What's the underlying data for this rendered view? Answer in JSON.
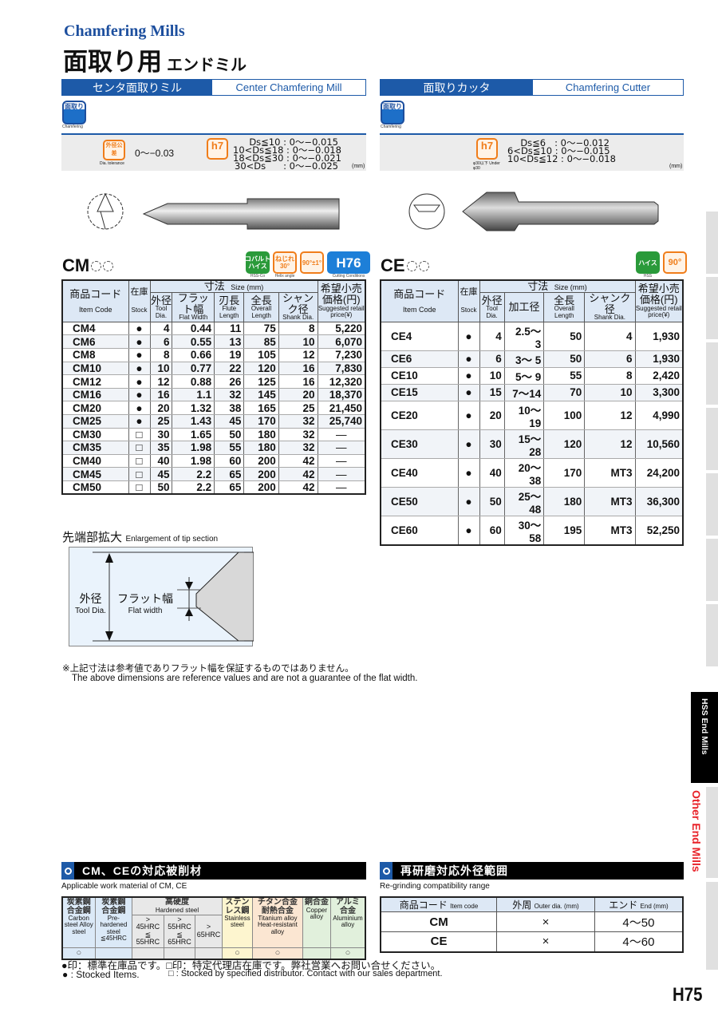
{
  "header": {
    "title_en": "Chamfering Mills",
    "title_jp": "面取り用",
    "title_jp_sub": "エンドミル"
  },
  "left": {
    "section_jp": "センタ面取りミル",
    "section_en": "Center Chamfering Mill",
    "icon_label": "面取り",
    "icon_caption": "Chamfering",
    "dia_tol_badge": "外径公差",
    "dia_tol_caption": "Dia. tolerance",
    "dia_tol_value": "0〜−0.03",
    "h7_badge": "h7",
    "h7_lines": "Ds≦10 : 0〜−0.015\n10<Ds≦18 : 0〜−0.018\n18<Ds≦30 : 0〜−0.021\n30<Ds      : 0〜−0.025",
    "unit": "(mm)",
    "series": "CM",
    "spec_icons": [
      {
        "label": "コバルト\nハイス",
        "caption": "HSS-Co",
        "color": "#2a9a3a"
      },
      {
        "label": "ねじれ30°",
        "caption": "Helix angle",
        "color": "#f07d1a"
      },
      {
        "label": "90°±1°",
        "caption": "",
        "color": "#f07d1a"
      },
      {
        "label": "H76",
        "caption": "Cutting Conditions",
        "color": "#1d7fd8"
      }
    ],
    "table": {
      "h_code_jp": "商品コード",
      "h_code_en": "Item Code",
      "h_stock_jp": "在庫",
      "h_stock_en": "Stock",
      "h_size_jp": "寸法",
      "h_size_en": "Size (mm)",
      "cols": [
        {
          "jp": "外径",
          "en": "Tool Dia."
        },
        {
          "jp": "フラット幅",
          "en": "Flat Width"
        },
        {
          "jp": "刃長",
          "en": "Flute Length"
        },
        {
          "jp": "全長",
          "en": "Overall Length"
        },
        {
          "jp": "シャンク径",
          "en": "Shank Dia."
        }
      ],
      "h_price_jp": "希望小売価格(円)",
      "h_price_en": "Suggested retail price(¥)",
      "rows": [
        [
          "CM4",
          "●",
          "4",
          "0.44",
          "11",
          "75",
          "8",
          "5,220"
        ],
        [
          "CM6",
          "●",
          "6",
          "0.55",
          "13",
          "85",
          "10",
          "6,070"
        ],
        [
          "CM8",
          "●",
          "8",
          "0.66",
          "19",
          "105",
          "12",
          "7,230"
        ],
        [
          "CM10",
          "●",
          "10",
          "0.77",
          "22",
          "120",
          "16",
          "7,830"
        ],
        [
          "CM12",
          "●",
          "12",
          "0.88",
          "26",
          "125",
          "16",
          "12,320"
        ],
        [
          "CM16",
          "●",
          "16",
          "1.1",
          "32",
          "145",
          "20",
          "18,370"
        ],
        [
          "CM20",
          "●",
          "20",
          "1.32",
          "38",
          "165",
          "25",
          "21,450"
        ],
        [
          "CM25",
          "●",
          "25",
          "1.43",
          "45",
          "170",
          "32",
          "25,740"
        ],
        [
          "CM30",
          "□",
          "30",
          "1.65",
          "50",
          "180",
          "32",
          "—"
        ],
        [
          "CM35",
          "□",
          "35",
          "1.98",
          "55",
          "180",
          "32",
          "—"
        ],
        [
          "CM40",
          "□",
          "40",
          "1.98",
          "60",
          "200",
          "42",
          "—"
        ],
        [
          "CM45",
          "□",
          "45",
          "2.2",
          "65",
          "200",
          "42",
          "—"
        ],
        [
          "CM50",
          "□",
          "50",
          "2.2",
          "65",
          "200",
          "42",
          "—"
        ]
      ]
    }
  },
  "right": {
    "section_jp": "面取りカッタ",
    "section_en": "Chamfering Cutter",
    "icon_label": "面取り",
    "icon_caption": "Chamfering",
    "h7_badge": "h7",
    "h7_caption": "φ30以下 Under φ30",
    "h7_lines": "Ds≦6   : 0〜−0.012\n6<Ds≦10 : 0〜−0.015\n10<Ds≦12 : 0〜−0.018",
    "unit": "(mm)",
    "series": "CE",
    "spec_icons": [
      {
        "label": "ハイス",
        "caption": "HSS",
        "color": "#2a9a3a"
      },
      {
        "label": "90°",
        "caption": "",
        "color": "#f07d1a"
      }
    ],
    "table": {
      "h_code_jp": "商品コード",
      "h_code_en": "Item Code",
      "h_stock_jp": "在庫",
      "h_stock_en": "Stock",
      "h_size_jp": "寸法",
      "h_size_en": "Size (mm)",
      "cols": [
        {
          "jp": "外径",
          "en": "Tool Dia."
        },
        {
          "jp": "加工径",
          "en": ""
        },
        {
          "jp": "全長",
          "en": "Overall Length"
        },
        {
          "jp": "シャンク径",
          "en": "Shank Dia."
        }
      ],
      "h_price_jp": "希望小売価格(円)",
      "h_price_en": "Suggested retail price(¥)",
      "rows": [
        [
          "CE4",
          "●",
          "4",
          "2.5〜 3",
          "50",
          "4",
          "1,930"
        ],
        [
          "CE6",
          "●",
          "6",
          "3〜 5",
          "50",
          "6",
          "1,930"
        ],
        [
          "CE10",
          "●",
          "10",
          "5〜 9",
          "55",
          "8",
          "2,420"
        ],
        [
          "CE15",
          "●",
          "15",
          "7〜14",
          "70",
          "10",
          "3,300"
        ],
        [
          "CE20",
          "●",
          "20",
          "10〜19",
          "100",
          "12",
          "4,990"
        ],
        [
          "CE30",
          "●",
          "30",
          "15〜28",
          "120",
          "12",
          "10,560"
        ],
        [
          "CE40",
          "●",
          "40",
          "20〜38",
          "170",
          "MT3",
          "24,200"
        ],
        [
          "CE50",
          "●",
          "50",
          "25〜48",
          "180",
          "MT3",
          "36,300"
        ],
        [
          "CE60",
          "●",
          "60",
          "30〜58",
          "195",
          "MT3",
          "52,250"
        ]
      ]
    }
  },
  "tip": {
    "title_jp": "先端部拡大",
    "title_en": "Enlargement of tip section",
    "dia_jp": "外径",
    "dia_en": "Tool Dia.",
    "flat_jp": "フラット幅",
    "flat_en": "Flat width"
  },
  "note": {
    "jp": "※上記寸法は参考値でありフラット幅を保証するものではありません。",
    "en": "The above dimensions are reference values and are not a guarantee of the flat width."
  },
  "materials": {
    "title": "CM、CEの対応被削材",
    "subtitle": "Applicable work material of CM, CE",
    "cols": [
      {
        "jp": "炭素鋼\n合金鋼",
        "en": "Carbon steel Alloy steel",
        "mark": "○",
        "color": "#dbe9f7"
      },
      {
        "jp": "炭素鋼\n合金鋼",
        "en": "Pre-hardened steel ≦45HRC",
        "mark": "",
        "color": "#dbe9f7"
      },
      {
        "jp": "",
        "en": "> 45HRC ≦ 55HRC",
        "mark": "",
        "color": "#e8e8e8"
      },
      {
        "jp": "",
        "en": "> 55HRC ≦ 65HRC",
        "mark": "",
        "color": "#e8e8e8"
      },
      {
        "jp": "",
        "en": "> 65HRC",
        "mark": "",
        "color": "#e8e8e8"
      },
      {
        "jp": "ステン\nレス鋼",
        "en": "Stainless steel",
        "mark": "○",
        "color": "#fdf5cf"
      },
      {
        "jp": "チタン合金\n耐熱合金",
        "en": "Titanium alloy Heat-resistant alloy",
        "mark": "○",
        "color": "#fbe6d2"
      },
      {
        "jp": "銅合金",
        "en": "Copper alloy",
        "mark": "",
        "color": "#e1f0dc"
      },
      {
        "jp": "アルミ\n合金",
        "en": "Aluminium alloy",
        "mark": "○",
        "color": "#e1f0dc"
      }
    ],
    "hard_jp": "高硬度",
    "hard_en": "Hardened steel"
  },
  "regrind": {
    "title": "再研磨対応外径範囲",
    "subtitle": "Re-grinding compatibility range",
    "h_code": "商品コード",
    "h_code_en": "Item code",
    "h_outer": "外周",
    "h_outer_en": "Outer dia. (mm)",
    "h_end": "エンド",
    "h_end_en": "End (mm)",
    "rows": [
      [
        "CM",
        "×",
        "4〜50"
      ],
      [
        "CE",
        "×",
        "4〜60"
      ]
    ]
  },
  "legend": {
    "jp": "●印：標準在庫品です。□印：特定代理店在庫です。弊社営業へお問い合せください。",
    "en_stock": "● : Stocked Items.",
    "en_dist": "□ : Stocked by specified distributor. Contact with our sales department."
  },
  "side_tabs": {
    "active": "HSS End Mills",
    "other": "Other End Mills",
    "accent": "#e8232a"
  },
  "page_number": "H75"
}
